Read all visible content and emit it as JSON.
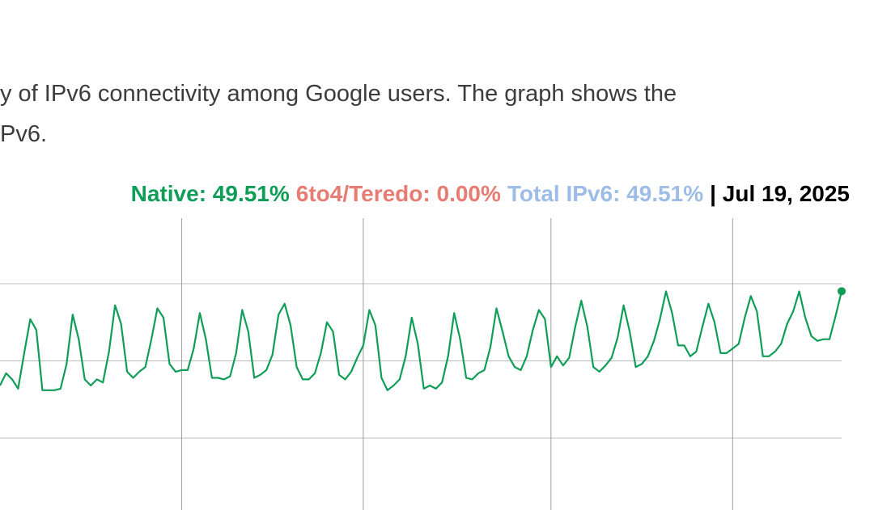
{
  "intro": {
    "lines": [
      "y of IPv6 connectivity among Google users. The graph shows the",
      "Pv6."
    ]
  },
  "chart_data": {
    "type": "line",
    "readout": [
      {
        "text": "Native: 49.51%",
        "color": "#0f9d58"
      },
      {
        "text": "6to4/Teredo: 0.00%",
        "color": "#e67c73"
      },
      {
        "text": "Total IPv6: 49.51%",
        "color": "#9dbde6"
      },
      {
        "text": "| Jul 19, 2025",
        "color": "#000000"
      }
    ],
    "series": [
      {
        "color": "#0f9d58",
        "values": [
          43.4,
          44.2,
          43.8,
          43.2,
          45.5,
          47.7,
          47.0,
          43.1,
          43.1,
          43.1,
          43.2,
          44.8,
          48.0,
          46.4,
          43.8,
          43.4,
          43.8,
          43.6,
          45.6,
          48.6,
          47.4,
          44.3,
          43.9,
          44.3,
          44.6,
          46.4,
          48.4,
          47.8,
          44.8,
          44.3,
          44.4,
          44.4,
          45.8,
          48.1,
          46.4,
          43.9,
          43.9,
          43.8,
          44.0,
          45.5,
          48.3,
          46.9,
          43.9,
          44.1,
          44.4,
          45.4,
          48.0,
          48.7,
          47.3,
          44.6,
          43.8,
          43.8,
          44.2,
          45.5,
          47.5,
          46.9,
          44.1,
          43.8,
          44.3,
          45.2,
          46.0,
          48.3,
          47.3,
          43.9,
          43.1,
          43.4,
          43.8,
          45.3,
          47.8,
          46.1,
          43.2,
          43.4,
          43.2,
          43.6,
          45.3,
          48.1,
          46.4,
          43.9,
          43.8,
          44.2,
          44.4,
          45.9,
          48.4,
          46.9,
          45.3,
          44.6,
          44.4,
          45.3,
          47.0,
          48.3,
          47.7,
          44.6,
          45.3,
          44.7,
          45.2,
          47.2,
          48.9,
          47.2,
          44.6,
          44.3,
          44.7,
          45.2,
          46.5,
          48.6,
          46.9,
          44.6,
          44.8,
          45.3,
          46.3,
          47.7,
          49.5,
          48.1,
          46.0,
          46.0,
          45.3,
          45.6,
          47.2,
          48.7,
          47.5,
          45.5,
          45.5,
          45.8,
          46.1,
          47.8,
          49.2,
          48.2,
          45.3,
          45.3,
          45.6,
          46.1,
          47.4,
          48.2,
          49.5,
          47.8,
          46.6,
          46.3,
          46.4,
          46.4,
          47.9,
          49.51
        ]
      }
    ],
    "xlim": [
      0,
      139
    ],
    "xticks": [
      30,
      60,
      91,
      121
    ],
    "ylim": [
      35.34,
      54.24
    ],
    "yticks": [
      40,
      45,
      50
    ],
    "grid": true,
    "tick_labels": false,
    "end_marker": true
  }
}
